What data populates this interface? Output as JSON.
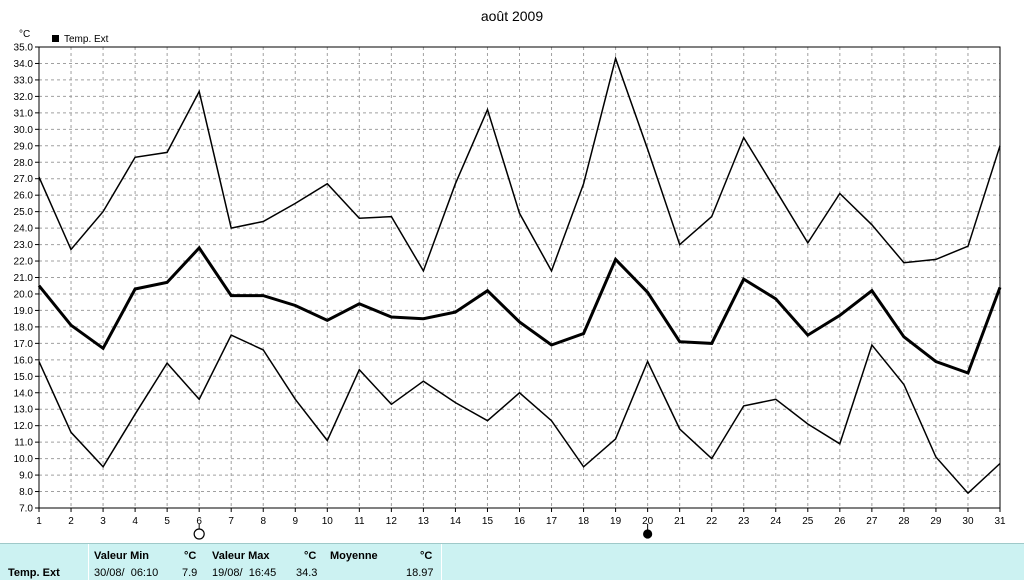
{
  "chart_data": {
    "type": "line",
    "title": "août 2009",
    "ylabel": "°C",
    "legend": "Temp. Ext",
    "legend_position": "top-left",
    "grid": true,
    "ylim": [
      7.0,
      35.0
    ],
    "ytick_step": 1.0,
    "x": [
      1,
      2,
      3,
      4,
      5,
      6,
      7,
      8,
      9,
      10,
      11,
      12,
      13,
      14,
      15,
      16,
      17,
      18,
      19,
      20,
      21,
      22,
      23,
      24,
      25,
      26,
      27,
      28,
      29,
      30,
      31
    ],
    "series": [
      {
        "role": "max",
        "width": 1.5,
        "values": [
          27.1,
          22.7,
          25.0,
          28.3,
          28.6,
          32.3,
          24.0,
          24.4,
          25.5,
          26.7,
          24.6,
          24.7,
          21.4,
          26.7,
          31.2,
          24.9,
          21.4,
          26.7,
          34.3,
          28.8,
          23.0,
          24.7,
          29.5,
          26.3,
          23.1,
          26.1,
          24.2,
          21.9,
          22.1,
          22.9,
          29.0
        ]
      },
      {
        "role": "mean",
        "width": 3,
        "values": [
          20.5,
          18.1,
          16.7,
          20.3,
          20.7,
          22.8,
          19.9,
          19.9,
          19.3,
          18.4,
          19.4,
          18.6,
          18.5,
          18.9,
          20.2,
          18.3,
          16.9,
          17.6,
          22.1,
          20.1,
          17.1,
          17.0,
          20.9,
          19.7,
          17.5,
          18.7,
          20.2,
          17.4,
          15.9,
          15.2,
          20.4
        ]
      },
      {
        "role": "min",
        "width": 1.5,
        "values": [
          15.9,
          11.6,
          9.5,
          12.7,
          15.8,
          13.6,
          17.5,
          16.6,
          13.6,
          11.1,
          15.4,
          13.3,
          14.7,
          13.4,
          12.3,
          14.0,
          12.3,
          9.5,
          11.2,
          15.9,
          11.8,
          10.0,
          13.2,
          13.6,
          12.1,
          10.9,
          16.9,
          14.5,
          10.1,
          7.9,
          9.7
        ]
      }
    ],
    "moon_markers": [
      {
        "day": 6,
        "phase": "full-moon-icon"
      },
      {
        "day": 20,
        "phase": "new-moon-icon"
      }
    ]
  },
  "stats": {
    "row_label": "Temp. Ext",
    "min_header": "Valeur Min",
    "min_unit": "°C",
    "min_datetime": "30/08/  06:10",
    "min_value": "7.9",
    "max_header": "Valeur Max",
    "max_unit": "°C",
    "max_datetime": "19/08/  16:45",
    "max_value": "34.3",
    "avg_header": "Moyenne",
    "avg_unit": "°C",
    "avg_value": "18.97"
  },
  "colors": {
    "line": "#000000",
    "grid": "#a0a0a0",
    "panel": "#ccf2f2"
  }
}
